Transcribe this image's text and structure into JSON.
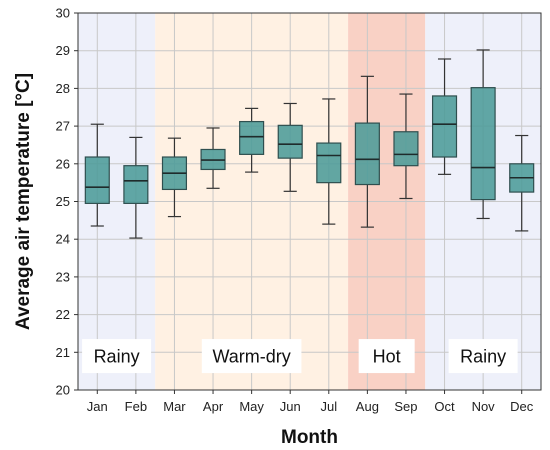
{
  "chart_data": {
    "type": "box",
    "xlabel": "Month",
    "ylabel": "Average air temperature [°C]",
    "ylim": [
      20,
      30
    ],
    "yticks": [
      20,
      21,
      22,
      23,
      24,
      25,
      26,
      27,
      28,
      29,
      30
    ],
    "grid": true,
    "categories": [
      "Jan",
      "Feb",
      "Mar",
      "Apr",
      "May",
      "Jun",
      "Jul",
      "Aug",
      "Sep",
      "Oct",
      "Nov",
      "Dec"
    ],
    "boxes": [
      {
        "min": 24.35,
        "q1": 24.95,
        "median": 25.38,
        "q3": 26.18,
        "max": 27.05
      },
      {
        "min": 24.03,
        "q1": 24.95,
        "median": 25.55,
        "q3": 25.95,
        "max": 26.7
      },
      {
        "min": 24.6,
        "q1": 25.32,
        "median": 25.75,
        "q3": 26.18,
        "max": 26.68
      },
      {
        "min": 25.35,
        "q1": 25.85,
        "median": 26.1,
        "q3": 26.38,
        "max": 26.95
      },
      {
        "min": 25.78,
        "q1": 26.25,
        "median": 26.72,
        "q3": 27.12,
        "max": 27.47
      },
      {
        "min": 25.27,
        "q1": 26.15,
        "median": 26.52,
        "q3": 27.02,
        "max": 27.6
      },
      {
        "min": 24.4,
        "q1": 25.5,
        "median": 26.22,
        "q3": 26.55,
        "max": 27.72
      },
      {
        "min": 24.32,
        "q1": 25.45,
        "median": 26.12,
        "q3": 27.08,
        "max": 28.32
      },
      {
        "min": 25.08,
        "q1": 25.95,
        "median": 26.25,
        "q3": 26.85,
        "max": 27.85
      },
      {
        "min": 25.72,
        "q1": 26.18,
        "median": 27.05,
        "q3": 27.8,
        "max": 28.78
      },
      {
        "min": 24.55,
        "q1": 25.05,
        "median": 25.9,
        "q3": 28.02,
        "max": 29.02
      },
      {
        "min": 24.22,
        "q1": 25.25,
        "median": 25.63,
        "q3": 26.0,
        "max": 26.75
      }
    ],
    "seasons": [
      {
        "label": "Rainy",
        "from": "Jan",
        "to": "Feb",
        "color": "#eef0fa"
      },
      {
        "label": "Warm-dry",
        "from": "Mar",
        "to": "Jul",
        "color": "#fff1e3"
      },
      {
        "label": "Hot",
        "from": "Aug",
        "to": "Sep",
        "color": "#f9d1c5"
      },
      {
        "label": "Rainy",
        "from": "Oct",
        "to": "Dec",
        "color": "#eef0fa"
      }
    ],
    "colors": {
      "box_fill": "#4c9b98",
      "box_stroke": "#2f4f4f",
      "median": "#1f2b2b",
      "whisker": "#333333",
      "grid": "#c8c8c8"
    }
  }
}
